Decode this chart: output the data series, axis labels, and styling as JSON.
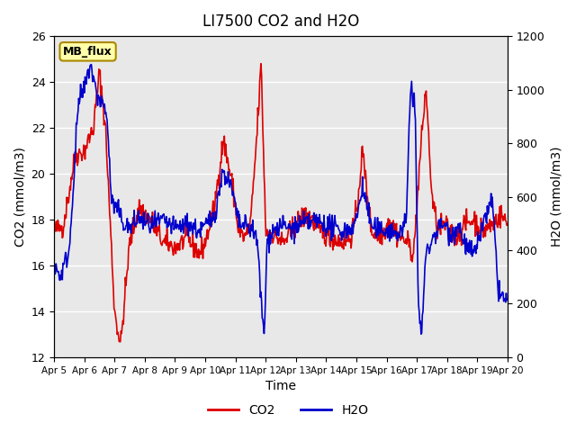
{
  "title": "LI7500 CO2 and H2O",
  "xlabel": "Time",
  "ylabel_left": "CO2 (mmol/m3)",
  "ylabel_right": "H2O (mmol/m3)",
  "ylim_left": [
    12,
    26
  ],
  "ylim_right": [
    0,
    1200
  ],
  "yticks_left": [
    12,
    14,
    16,
    18,
    20,
    22,
    24,
    26
  ],
  "yticks_right": [
    0,
    200,
    400,
    600,
    800,
    1000,
    1200
  ],
  "co2_color": "#dd0000",
  "h2o_color": "#0000cc",
  "legend_entries": [
    "CO2",
    "H2O"
  ],
  "annotation_text": "MB_flux",
  "annotation_bg": "#ffffaa",
  "annotation_border": "#aa8800",
  "background_color": "#ffffff",
  "plot_bg_color": "#e8e8e8",
  "linewidth": 1.2,
  "grid_color": "#ffffff",
  "xtick_labels": [
    "Apr 5",
    "Apr 6",
    "Apr 7",
    "Apr 8",
    "Apr 9",
    "Apr 10",
    "Apr 11",
    "Apr 12",
    "Apr 13",
    "Apr 14",
    "Apr 15",
    "Apr 16",
    "Apr 17",
    "Apr 18",
    "Apr 19",
    "Apr 20"
  ],
  "xtick_positions": [
    5,
    6,
    7,
    8,
    9,
    10,
    11,
    12,
    13,
    14,
    15,
    16,
    17,
    18,
    19,
    20
  ]
}
